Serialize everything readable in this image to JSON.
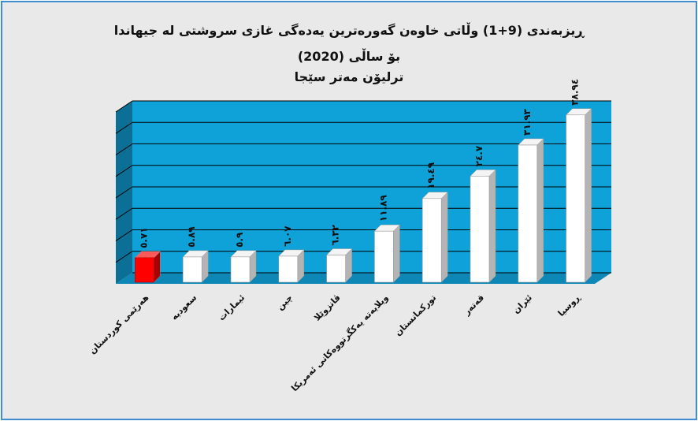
{
  "chart_data": {
    "type": "bar",
    "title": "ڕیزبەندی (9+1) وڵاتی خاوەن گەورەترین یەدەگی غازی سروشتی لە جیهاندا",
    "subtitle": "بۆ ساڵی (2020)",
    "unit_label": "ترلیۆن مەتر سێجا",
    "categories": [
      "هەرێمی کوردستان",
      "سعودیە",
      "ئیمارات",
      "چین",
      "ڤانزوێلا",
      "ویلایەتە یەکگرتووەکانی ئەمریکا",
      "تورکمانستان",
      "قەتەر",
      "ئێران",
      "ڕوسیا"
    ],
    "values": [
      5.71,
      5.89,
      5.9,
      6.07,
      6.32,
      11.89,
      19.49,
      24.7,
      31.93,
      38.94
    ],
    "value_labels": [
      "٥.٧١",
      "٥.٨٩",
      "٥.٩",
      "٦.٠٧",
      "٦.٣٢",
      "١١.٨٩",
      "١٩.٤٩",
      "٢٤.٧",
      "٣١.٩٣",
      "٣٨.٩٤"
    ],
    "highlight_index": 0,
    "ylim": [
      0,
      40
    ],
    "grid": true,
    "colors": {
      "wall": "#0fa2d8",
      "wall_side": "#0b6f96",
      "floor": "#0c87b6",
      "bar": "#ffffff",
      "bar_side": "#b4b4b4",
      "highlight": "#ff0000",
      "highlight_side": "#a80000",
      "frame": "#3d8fd1",
      "background": "#e9e9e9"
    }
  }
}
